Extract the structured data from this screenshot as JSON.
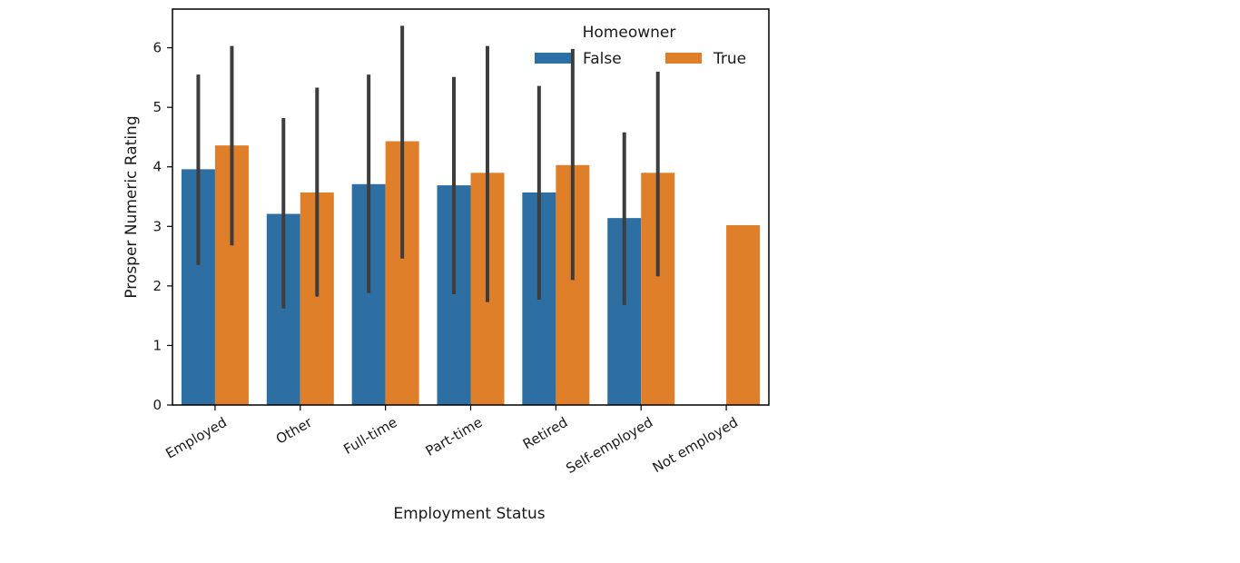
{
  "chart_data": {
    "type": "bar",
    "xlabel": "Employment Status",
    "ylabel": "Prosper Numeric Rating",
    "ylim": [
      0,
      6.65
    ],
    "yticks": [
      0,
      1,
      2,
      3,
      4,
      5,
      6
    ],
    "categories": [
      "Employed",
      "Other",
      "Full-time",
      "Part-time",
      "Retired",
      "Self-employed",
      "Not employed"
    ],
    "legend": {
      "title": "Homeowner",
      "placement": "top-right"
    },
    "series": [
      {
        "name": "False",
        "color": "#2e6fa3",
        "values": [
          3.96,
          3.21,
          3.71,
          3.69,
          3.57,
          3.14,
          null
        ],
        "ci_low": [
          2.35,
          1.62,
          1.88,
          1.86,
          1.77,
          1.68,
          null
        ],
        "ci_high": [
          5.55,
          4.82,
          5.55,
          5.51,
          5.36,
          4.58,
          null
        ]
      },
      {
        "name": "True",
        "color": "#e07f29",
        "values": [
          4.36,
          3.57,
          4.43,
          3.9,
          4.03,
          3.9,
          3.02
        ],
        "ci_low": [
          2.68,
          1.82,
          2.46,
          1.73,
          2.1,
          2.16,
          null
        ],
        "ci_high": [
          6.03,
          5.33,
          6.37,
          6.03,
          5.98,
          5.6,
          null
        ]
      }
    ]
  }
}
